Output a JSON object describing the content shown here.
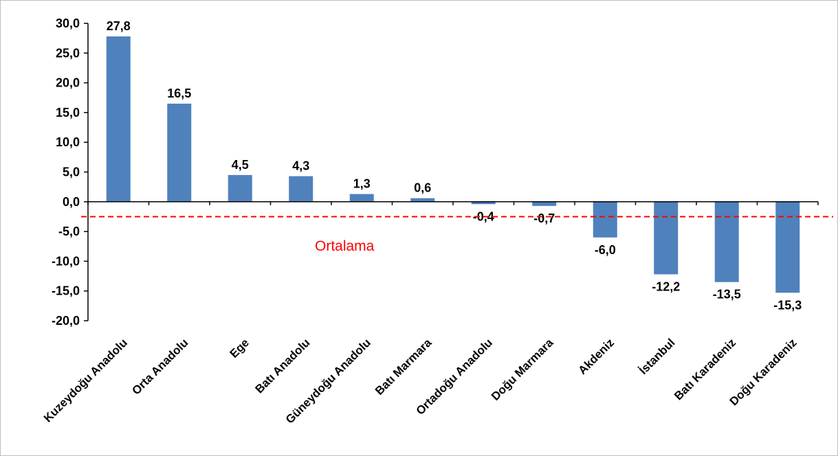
{
  "chart_data": {
    "type": "bar",
    "categories": [
      "Kuzeydoğu Anadolu",
      "Orta Anadolu",
      "Ege",
      "Batı Anadolu",
      "Güneydoğu Anadolu",
      "Batı Marmara",
      "Ortadoğu Anadolu",
      "Doğu Marmara",
      "Akdeniz",
      "İstanbul",
      "Batı Karadeniz",
      "Doğu Karadeniz"
    ],
    "values": [
      27.8,
      16.5,
      4.5,
      4.3,
      1.3,
      0.6,
      -0.4,
      -0.7,
      -6.0,
      -12.2,
      -13.5,
      -15.3
    ],
    "data_labels": [
      "27,8",
      "16,5",
      "4,5",
      "4,3",
      "1,3",
      "0,6",
      "-0,4",
      "-0,7",
      "-6,0",
      "-12,2",
      "-13,5",
      "-15,3"
    ],
    "ylim": [
      -20,
      30
    ],
    "y_ticks": [
      30,
      25,
      20,
      15,
      10,
      5,
      0,
      -5,
      -10,
      -15,
      -20
    ],
    "y_tick_labels": [
      "30,0",
      "25,0",
      "20,0",
      "15,0",
      "10,0",
      "5,0",
      "0,0",
      "-5,0",
      "-10,0",
      "-15,0",
      "-20,0"
    ],
    "reference_line": {
      "label": "Ortalama",
      "value": -2.5,
      "style": "dashed",
      "color": "#ff0000"
    },
    "bar_color": "#4f81bd",
    "grid": false,
    "legend": "none"
  }
}
